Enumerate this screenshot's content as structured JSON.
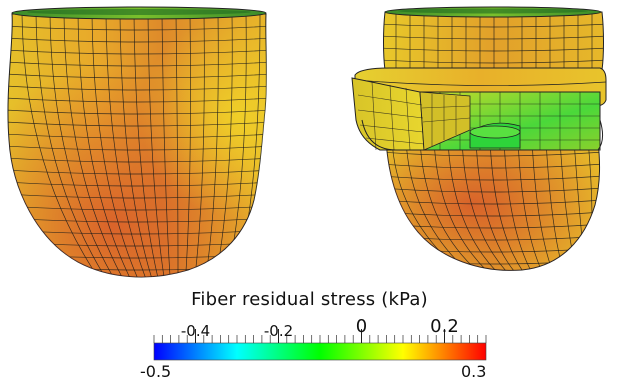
{
  "legend": {
    "title": "Fiber residual stress (kPa)",
    "min_label": "-0.5",
    "max_label": "0.3",
    "range": [
      -0.5,
      0.3
    ],
    "ticks": [
      {
        "value": -0.4,
        "label": "-0.4"
      },
      {
        "value": -0.2,
        "label": "-0.2"
      },
      {
        "value": 0,
        "label": "0"
      },
      {
        "value": 0.2,
        "label": "0.2"
      }
    ],
    "colormap": [
      "#0000ff",
      "#00ffff",
      "#00ff00",
      "#ffff00",
      "#ff0000"
    ]
  },
  "views": [
    {
      "name": "intact-heart-model"
    },
    {
      "name": "cutaway-heart-model"
    }
  ],
  "colors": {
    "surface_base": "#e0a52a",
    "surface_hot": "#d8642a",
    "surface_cool": "#f0e020",
    "inner_green": "#3fd63a",
    "mesh_line": "#1a1a1a"
  }
}
